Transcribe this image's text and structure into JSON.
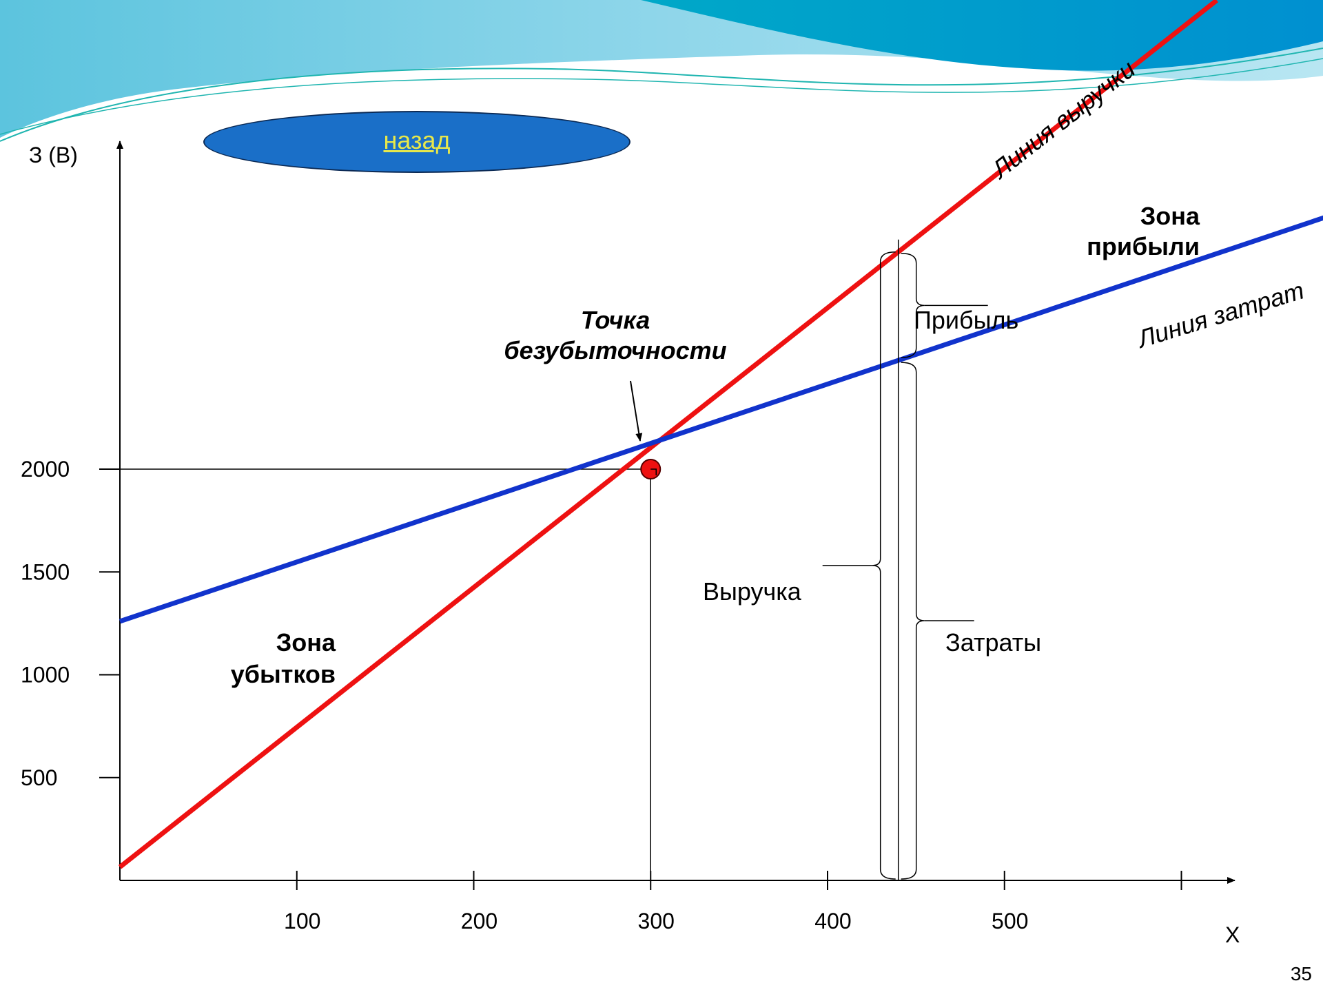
{
  "slide": {
    "back_button_label": "назад",
    "page_number": "35"
  },
  "colors": {
    "revenue": "#ee1111",
    "costs": "#1133cc",
    "profit_zone": "#ee1111",
    "loss_zone": "#1133cc",
    "breakeven_point": "#ee1111",
    "button_fill": "#1a6fc8",
    "button_text": "#e8e84a"
  },
  "chart_data": {
    "type": "line",
    "ylabel": "З (В)",
    "xlabel": "Х",
    "x_ticks": [
      100,
      200,
      300,
      400,
      500,
      600
    ],
    "x_tick_labels": [
      "100",
      "200",
      "300",
      "400",
      "500",
      ""
    ],
    "y_ticks": [
      500,
      1000,
      1500,
      2000
    ],
    "y_tick_labels": [
      "500",
      "1000",
      "1500",
      "2000"
    ],
    "xlim": [
      0,
      640
    ],
    "ylim": [
      0,
      4200
    ],
    "grid": false,
    "series": [
      {
        "name": "Линия выручки",
        "color": "#ee1111",
        "points": [
          [
            0,
            65
          ],
          [
            620,
            4280
          ]
        ]
      },
      {
        "name": "Линия затрат",
        "color": "#1133cc",
        "points": [
          [
            0,
            1260
          ],
          [
            690,
            3250
          ]
        ]
      }
    ],
    "breakeven": {
      "x": 300,
      "y": 2000,
      "label_line1": "Точка",
      "label_line2": "безубыточности"
    },
    "zones": {
      "profit_line1": "Зона",
      "profit_line2": "прибыли",
      "loss_line1": "Зона",
      "loss_line2": "убытков"
    },
    "annotations": {
      "x": 440,
      "revenue": "Выручка",
      "costs": "Затраты",
      "profit": "Прибыль"
    }
  }
}
